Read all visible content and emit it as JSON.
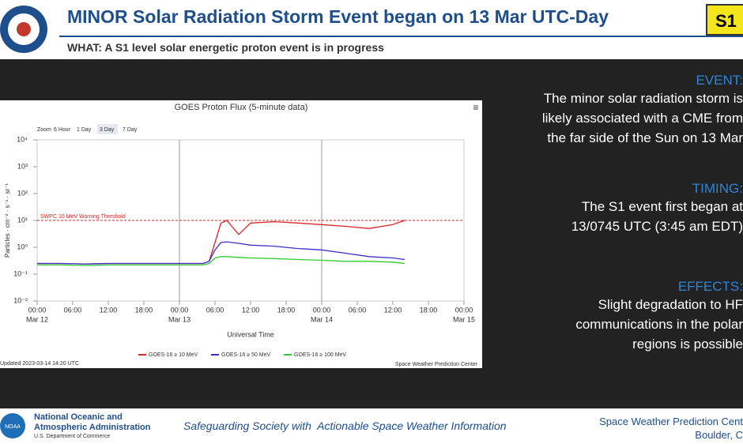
{
  "header": {
    "title": "MINOR Solar Radiation Storm Event began on 13 Mar UTC-Day",
    "subtitle": "WHAT: A S1 level solar energetic proton event is in progress",
    "badge": "S1"
  },
  "side": [
    {
      "heading": "EVENT:",
      "lines": [
        "The minor solar radiation storm is",
        "likely associated with a CME from",
        "the far side of the Sun on 13 Mar"
      ]
    },
    {
      "heading": "TIMING:",
      "lines": [
        "The S1 event first began at",
        "13/0745 UTC (3:45 am EDT)"
      ]
    },
    {
      "heading": "EFFECTS:",
      "lines": [
        "Slight degradation to HF",
        "communications in the polar",
        "regions is possible"
      ]
    }
  ],
  "footer": {
    "org": [
      "National Oceanic and",
      "Atmospheric Administration"
    ],
    "dept": "U.S. Department of Commerce",
    "logo": "NOAA",
    "motto": "Safeguarding Society with  Actionable Space Weather Information",
    "center": [
      "Space Weather Prediction Cent",
      "Boulder, C"
    ]
  },
  "chart_data": {
    "type": "line",
    "title": "GOES Proton Flux (5-minute data)",
    "menu": "≡",
    "zoom": {
      "label": "Zoom",
      "buttons": [
        "6 Hour",
        "1 Day",
        "3 Day",
        "7 Day"
      ],
      "active": 2
    },
    "ylabel": "Particles · cm⁻² · s⁻¹ · sr⁻¹",
    "xlabel": "Universal Time",
    "ylog": true,
    "ylim": [
      0.01,
      10000
    ],
    "yticks": [
      {
        "value": 0.01,
        "label": "10⁻²"
      },
      {
        "value": 0.1,
        "label": "10⁻¹"
      },
      {
        "value": 1,
        "label": "10⁰"
      },
      {
        "value": 10,
        "label": "10¹"
      },
      {
        "value": 100,
        "label": "10²"
      },
      {
        "value": 1000,
        "label": "10³"
      },
      {
        "value": 10000,
        "label": "10⁴"
      }
    ],
    "xlim": [
      "2023-03-12T00:00",
      "2023-03-15T00:00"
    ],
    "xticks": [
      {
        "value": "2023-03-12T00:00",
        "label": "00:00"
      },
      {
        "value": "2023-03-12T06:00",
        "label": "06:00"
      },
      {
        "value": "2023-03-12T12:00",
        "label": "12:00"
      },
      {
        "value": "2023-03-12T18:00",
        "label": "18:00"
      },
      {
        "value": "2023-03-13T00:00",
        "label": "00:00"
      },
      {
        "value": "2023-03-13T06:00",
        "label": "06:00"
      },
      {
        "value": "2023-03-13T12:00",
        "label": "12:00"
      },
      {
        "value": "2023-03-13T18:00",
        "label": "18:00"
      },
      {
        "value": "2023-03-14T00:00",
        "label": "00:00"
      },
      {
        "value": "2023-03-14T06:00",
        "label": "06:00"
      },
      {
        "value": "2023-03-14T12:00",
        "label": "12:00"
      },
      {
        "value": "2023-03-14T18:00",
        "label": "18:00"
      },
      {
        "value": "2023-03-15T00:00",
        "label": "00:00"
      }
    ],
    "xdates": [
      {
        "value": "2023-03-12T00:00",
        "label": "Mar 12"
      },
      {
        "value": "2023-03-13T00:00",
        "label": "Mar 13"
      },
      {
        "value": "2023-03-14T00:00",
        "label": "Mar 14"
      },
      {
        "value": "2023-03-15T00:00",
        "label": "Mar 15"
      }
    ],
    "day_lines": [
      "2023-03-13T00:00",
      "2023-03-14T00:00"
    ],
    "threshold": {
      "value": 10,
      "label": "SWPC 10 MeV Warning Threshold",
      "color": "#d62728"
    },
    "x": [
      "2023-03-12T00:00",
      "2023-03-12T04:00",
      "2023-03-12T08:00",
      "2023-03-12T12:00",
      "2023-03-12T16:00",
      "2023-03-12T20:00",
      "2023-03-13T00:00",
      "2023-03-13T04:00",
      "2023-03-13T05:00",
      "2023-03-13T06:00",
      "2023-03-13T07:00",
      "2023-03-13T08:00",
      "2023-03-13T10:00",
      "2023-03-13T12:00",
      "2023-03-13T16:00",
      "2023-03-13T20:00",
      "2023-03-14T00:00",
      "2023-03-14T04:00",
      "2023-03-14T08:00",
      "2023-03-14T12:00",
      "2023-03-14T14:00"
    ],
    "series": [
      {
        "name": "GOES-16 ≥ 10 MeV",
        "color": "#d62728",
        "values": [
          0.25,
          0.25,
          0.24,
          0.25,
          0.25,
          0.25,
          0.25,
          0.25,
          0.3,
          1.5,
          8,
          10,
          3,
          8,
          9,
          8,
          7,
          6,
          5,
          7,
          10
        ]
      },
      {
        "name": "GOES-16 ≥ 50 MeV",
        "color": "#3a2fc8",
        "values": [
          0.25,
          0.25,
          0.24,
          0.25,
          0.25,
          0.25,
          0.25,
          0.25,
          0.3,
          0.8,
          1.5,
          1.6,
          1.4,
          1.2,
          1.1,
          0.9,
          0.8,
          0.6,
          0.45,
          0.4,
          0.35
        ]
      },
      {
        "name": "GOES-16 ≥ 100 MeV",
        "color": "#2ecc2e",
        "values": [
          0.22,
          0.22,
          0.21,
          0.22,
          0.22,
          0.22,
          0.22,
          0.22,
          0.25,
          0.4,
          0.45,
          0.45,
          0.42,
          0.4,
          0.38,
          0.35,
          0.33,
          0.3,
          0.3,
          0.28,
          0.25
        ]
      }
    ],
    "updated": "Updated 2023-03-14 14:20 UTC",
    "credit": "Space Weather Prediction Center"
  }
}
